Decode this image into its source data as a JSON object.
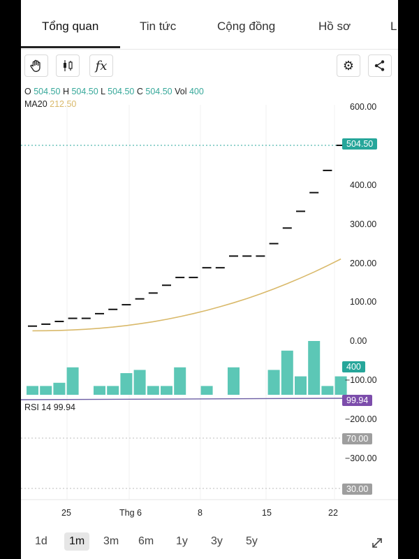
{
  "tabs": [
    "Tổng quan",
    "Tin tức",
    "Cộng đồng",
    "Hồ sơ",
    "L"
  ],
  "toolbar": {
    "hand_icon": "hand-icon",
    "candles_icon": "candlestick-icon",
    "fx_label": "fx",
    "settings_icon": "gear-icon",
    "share_icon": "share-icon"
  },
  "ohlc": {
    "o_label": "O",
    "o": "504.50",
    "h_label": "H",
    "h": "504.50",
    "l_label": "L",
    "l": "504.50",
    "c_label": "C",
    "c": "504.50",
    "vol_label": "Vol",
    "vol": "400"
  },
  "ma": {
    "label": "MA20",
    "value": "212.50"
  },
  "rsi": {
    "label": "RSI 14",
    "value": "99.94"
  },
  "y_ticks": [
    "600.00",
    "400.00",
    "300.00",
    "200.00",
    "100.00",
    "0.00",
    "−100.00",
    "−200.00",
    "−300.00"
  ],
  "badges": {
    "price": "504.50",
    "volume": "400",
    "rsi": "99.94",
    "rsi_upper": "70.00",
    "rsi_lower": "30.00"
  },
  "x_ticks": [
    "25",
    "Thg 6",
    "8",
    "15",
    "22"
  ],
  "ranges": [
    "1d",
    "1m",
    "3m",
    "6m",
    "1y",
    "3y",
    "5y"
  ],
  "expand_icon": "expand-icon",
  "colors": {
    "up": "#5cc7b6",
    "ma": "#d9b96a",
    "rsi": "#6b5da3",
    "badge_price": "#26a69a",
    "badge_rsi": "#7c4dab",
    "badge_level": "#9e9e9e"
  },
  "chart_data": {
    "type": "bar",
    "price_series": [
      {
        "date": "",
        "value": 40
      },
      {
        "date": "",
        "value": 45
      },
      {
        "date": "",
        "value": 52
      },
      {
        "date": "25",
        "value": 60
      },
      {
        "date": "",
        "value": 60
      },
      {
        "date": "",
        "value": 72
      },
      {
        "date": "",
        "value": 83
      },
      {
        "date": "",
        "value": 95
      },
      {
        "date": "",
        "value": 110
      },
      {
        "date": "",
        "value": 125
      },
      {
        "date": "",
        "value": 145
      },
      {
        "date": "",
        "value": 165
      },
      {
        "date": "",
        "value": 165
      },
      {
        "date": "8",
        "value": 190
      },
      {
        "date": "",
        "value": 190
      },
      {
        "date": "",
        "value": 220
      },
      {
        "date": "",
        "value": 220
      },
      {
        "date": "",
        "value": 220
      },
      {
        "date": "15",
        "value": 252
      },
      {
        "date": "",
        "value": 292
      },
      {
        "date": "",
        "value": 335
      },
      {
        "date": "",
        "value": 383
      },
      {
        "date": "",
        "value": 440
      },
      {
        "date": "22",
        "value": 504.5
      }
    ],
    "volume_bars": [
      10,
      10,
      20,
      68,
      0,
      10,
      10,
      50,
      60,
      10,
      10,
      68,
      0,
      10,
      0,
      68,
      0,
      0,
      60,
      120,
      40,
      150,
      10,
      40
    ],
    "ma20": {
      "name": "MA20",
      "last": 212.5
    },
    "rsi14": {
      "name": "RSI 14",
      "last": 99.94,
      "levels": [
        70,
        30
      ]
    },
    "ylabel": "",
    "xlabel": ""
  }
}
